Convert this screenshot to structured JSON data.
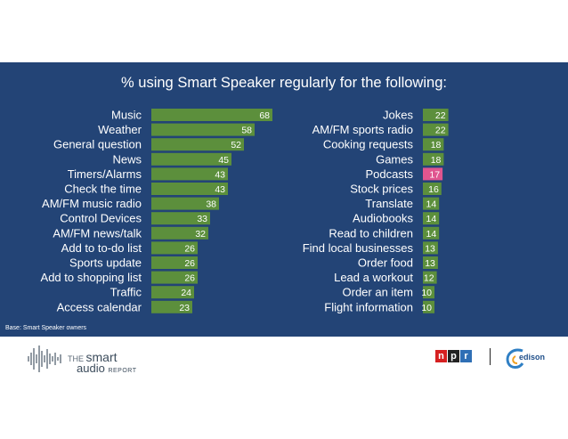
{
  "colors": {
    "panel": "#234476",
    "bar": "#5c8f3c",
    "highlight": "#e0558f",
    "text": "#ffffff"
  },
  "chart_data": {
    "type": "bar",
    "orientation": "horizontal",
    "title": "% using Smart Speaker regularly for the following:",
    "panels": [
      {
        "categories": [
          "Music",
          "Weather",
          "General question",
          "News",
          "Timers/Alarms",
          "Check the time",
          "AM/FM music radio",
          "Control Devices",
          "AM/FM news/talk",
          "Add to to-do list",
          "Sports update",
          "Add to shopping list",
          "Traffic",
          "Access calendar"
        ],
        "values": [
          68,
          58,
          52,
          45,
          43,
          43,
          38,
          33,
          32,
          26,
          26,
          26,
          24,
          23
        ]
      },
      {
        "categories": [
          "Jokes",
          "AM/FM sports radio",
          "Cooking requests",
          "Games",
          "Podcasts",
          "Stock prices",
          "Translate",
          "Audiobooks",
          "Read to children",
          "Find local businesses",
          "Order food",
          "Lead a workout",
          "Order an item",
          "Flight information"
        ],
        "values": [
          22,
          22,
          18,
          18,
          17,
          16,
          14,
          14,
          14,
          13,
          13,
          12,
          10,
          10
        ],
        "highlight": "Podcasts"
      }
    ],
    "note": "Base: Smart Speaker owners"
  },
  "logos": {
    "smart_audio": {
      "line1_prefix": "THE",
      "line1_word": "smart",
      "line2_word": "audio",
      "line2_suffix": "REPORT"
    },
    "npr": [
      "n",
      "p",
      "r"
    ],
    "edison": "edison"
  }
}
